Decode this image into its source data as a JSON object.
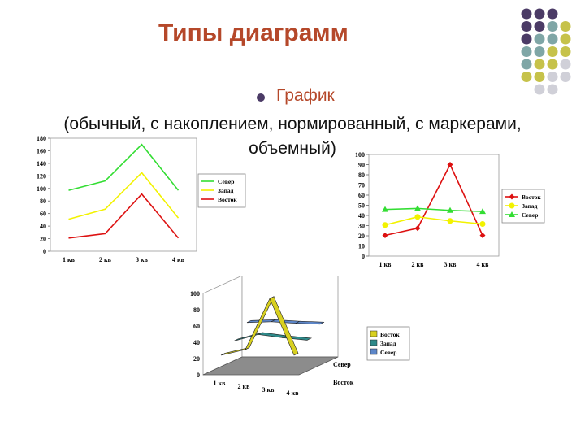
{
  "slide": {
    "title": "Типы диаграмм",
    "bullet_text": "График",
    "subtitle_line1": "(обычный, с накоплением, нормированный, с маркерами,",
    "subtitle_line2": "объемный)"
  },
  "colors": {
    "title": "#b5482a",
    "bullet": "#4b3b66",
    "north": "#33dd33",
    "west": "#f2f200",
    "east": "#dd1111",
    "dot_purple": "#4b3b66",
    "dot_teal": "#7fa6a6",
    "dot_olive": "#c6c24a",
    "dot_light": "#d0d0d8"
  },
  "chart_data": [
    {
      "type": "line",
      "categories": [
        "1 кв",
        "2 кв",
        "3 кв",
        "4 кв"
      ],
      "yticks": [
        "0",
        "20",
        "40",
        "60",
        "80",
        "100",
        "120",
        "140",
        "160",
        "180"
      ],
      "ylim": [
        0,
        180
      ],
      "legend_position": "right",
      "series": [
        {
          "name": "Север",
          "values": [
            97,
            112,
            170,
            97
          ],
          "color": "#33dd33"
        },
        {
          "name": "Запад",
          "values": [
            51,
            67,
            125,
            53
          ],
          "color": "#f2f200"
        },
        {
          "name": "Восток",
          "values": [
            21,
            28,
            91,
            21
          ],
          "color": "#dd1111"
        }
      ]
    },
    {
      "type": "line",
      "categories": [
        "1 кв",
        "2 кв",
        "3 кв",
        "4 кв"
      ],
      "yticks": [
        "0",
        "10",
        "20",
        "30",
        "40",
        "50",
        "60",
        "70",
        "80",
        "90",
        "100"
      ],
      "ylim": [
        0,
        100
      ],
      "legend_position": "right",
      "series": [
        {
          "name": "Восток",
          "values": [
            20.4,
            27.4,
            90,
            20.4
          ],
          "color": "#dd1111",
          "marker": "diamond"
        },
        {
          "name": "Запад",
          "values": [
            30.6,
            38.6,
            34.6,
            31.6
          ],
          "color": "#f2f200",
          "marker": "circle"
        },
        {
          "name": "Север",
          "values": [
            45.9,
            46.9,
            45,
            43.9
          ],
          "color": "#33dd33",
          "marker": "triangle"
        }
      ]
    },
    {
      "type": "line",
      "variant": "3d",
      "categories": [
        "1 кв",
        "2 кв",
        "3 кв",
        "4 кв"
      ],
      "yticks": [
        "0",
        "20",
        "40",
        "60",
        "80",
        "100"
      ],
      "ylim": [
        0,
        100
      ],
      "depth_labels": [
        "Восток",
        "Север"
      ],
      "legend_position": "right",
      "series": [
        {
          "name": "Восток",
          "values": [
            20.4,
            27.4,
            90,
            20.4
          ],
          "color": "#d8d020"
        },
        {
          "name": "Запад",
          "values": [
            30.6,
            38.6,
            34.6,
            31.6
          ],
          "color": "#2f8a8a"
        },
        {
          "name": "Север",
          "values": [
            45.9,
            46.9,
            45,
            43.9
          ],
          "color": "#5d86c8"
        }
      ]
    }
  ]
}
